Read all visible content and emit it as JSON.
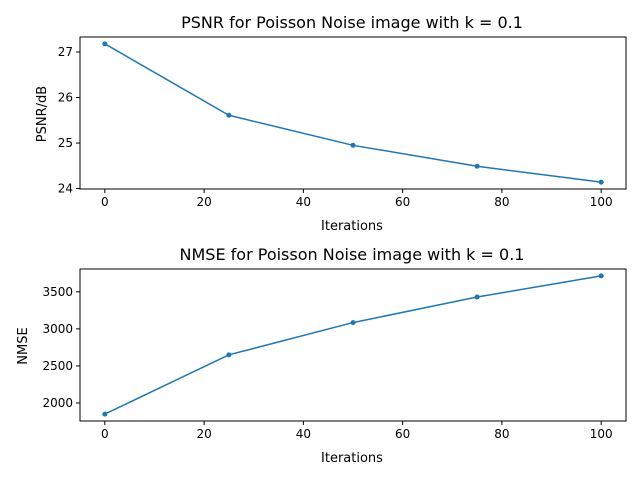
{
  "chart_data": [
    {
      "type": "line",
      "title": "PSNR for Poisson Noise image with k = 0.1",
      "xlabel": "Iterations",
      "ylabel": "PSNR/dB",
      "x": [
        0,
        25,
        50,
        75,
        100
      ],
      "series": [
        {
          "values": [
            27.18,
            25.61,
            24.95,
            24.49,
            24.14
          ],
          "color": "#1f77b4"
        }
      ],
      "xlim": [
        -5,
        105
      ],
      "ylim": [
        23.99,
        27.33
      ],
      "xticks": [
        0,
        20,
        40,
        60,
        80,
        100
      ],
      "xtick_labels": [
        "0",
        "20",
        "40",
        "60",
        "80",
        "100"
      ],
      "yticks": [
        24,
        25,
        26,
        27
      ],
      "ytick_labels": [
        "24",
        "25",
        "26",
        "27"
      ],
      "grid": false,
      "markers": true
    },
    {
      "type": "line",
      "title": "NMSE for Poisson Noise image with k = 0.1",
      "xlabel": "Iterations",
      "ylabel": "NMSE",
      "x": [
        0,
        25,
        50,
        75,
        100
      ],
      "series": [
        {
          "values": [
            1850,
            2650,
            3085,
            3430,
            3715
          ],
          "color": "#1f77b4"
        }
      ],
      "xlim": [
        -5,
        105
      ],
      "ylim": [
        1757,
        3808
      ],
      "xticks": [
        0,
        20,
        40,
        60,
        80,
        100
      ],
      "xtick_labels": [
        "0",
        "20",
        "40",
        "60",
        "80",
        "100"
      ],
      "yticks": [
        2000,
        2500,
        3000,
        3500
      ],
      "ytick_labels": [
        "2000",
        "2500",
        "3000",
        "3500"
      ],
      "grid": false,
      "markers": true
    }
  ]
}
